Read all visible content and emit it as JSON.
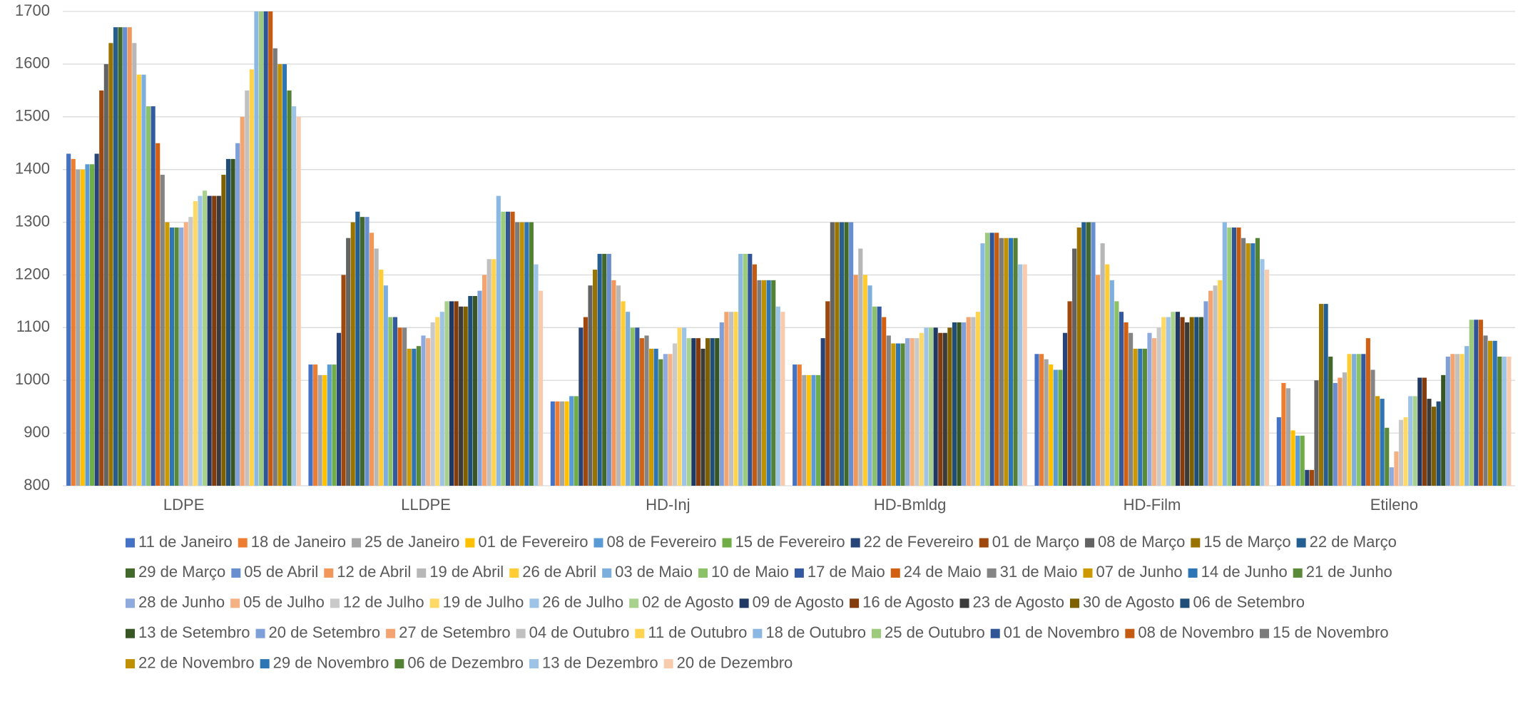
{
  "chart_data": {
    "type": "bar",
    "categories": [
      "LDPE",
      "LLDPE",
      "HD-Inj",
      "HD-Bmldg",
      "HD-Film",
      "Etileno"
    ],
    "ylim": [
      800,
      1700
    ],
    "yticks": [
      800,
      900,
      1000,
      1100,
      1200,
      1300,
      1400,
      1500,
      1600,
      1700
    ],
    "grid": true,
    "series": [
      {
        "name": "11 de Janeiro",
        "color": "#4472c4",
        "values": [
          1430,
          1030,
          960,
          1030,
          1050,
          930
        ]
      },
      {
        "name": "18 de Janeiro",
        "color": "#ed7d31",
        "values": [
          1420,
          1030,
          960,
          1030,
          1050,
          995
        ]
      },
      {
        "name": "25 de Janeiro",
        "color": "#a5a5a5",
        "values": [
          1400,
          1010,
          960,
          1010,
          1040,
          985
        ]
      },
      {
        "name": "01 de Fevereiro",
        "color": "#ffc000",
        "values": [
          1400,
          1010,
          960,
          1010,
          1030,
          905
        ]
      },
      {
        "name": "08 de Fevereiro",
        "color": "#5b9bd5",
        "values": [
          1410,
          1030,
          970,
          1010,
          1020,
          895
        ]
      },
      {
        "name": "15 de Fevereiro",
        "color": "#70ad47",
        "values": [
          1410,
          1030,
          970,
          1010,
          1020,
          895
        ]
      },
      {
        "name": "22 de Fevereiro",
        "color": "#264478",
        "values": [
          1430,
          1090,
          1100,
          1080,
          1090,
          830
        ]
      },
      {
        "name": "01 de Março",
        "color": "#9e480e",
        "values": [
          1550,
          1200,
          1120,
          1150,
          1150,
          830
        ]
      },
      {
        "name": "08 de Março",
        "color": "#636363",
        "values": [
          1600,
          1270,
          1180,
          1300,
          1250,
          1000
        ]
      },
      {
        "name": "15 de Março",
        "color": "#997300",
        "values": [
          1640,
          1300,
          1210,
          1300,
          1290,
          1145
        ]
      },
      {
        "name": "22 de Março",
        "color": "#255e91",
        "values": [
          1670,
          1320,
          1240,
          1300,
          1300,
          1145
        ]
      },
      {
        "name": "29 de Março",
        "color": "#43682b",
        "values": [
          1670,
          1310,
          1240,
          1300,
          1300,
          1045
        ]
      },
      {
        "name": "05 de Abril",
        "color": "#698ed0",
        "values": [
          1670,
          1310,
          1240,
          1300,
          1300,
          995
        ]
      },
      {
        "name": "12 de Abril",
        "color": "#f1975a",
        "values": [
          1670,
          1280,
          1190,
          1200,
          1200,
          1005
        ]
      },
      {
        "name": "19 de Abril",
        "color": "#b7b7b7",
        "values": [
          1640,
          1250,
          1180,
          1250,
          1260,
          1015
        ]
      },
      {
        "name": "26 de Abril",
        "color": "#ffcd33",
        "values": [
          1580,
          1210,
          1150,
          1200,
          1220,
          1050
        ]
      },
      {
        "name": "03 de Maio",
        "color": "#7cafdd",
        "values": [
          1580,
          1180,
          1130,
          1180,
          1190,
          1050
        ]
      },
      {
        "name": "10 de Maio",
        "color": "#8cc168",
        "values": [
          1520,
          1120,
          1100,
          1140,
          1150,
          1050
        ]
      },
      {
        "name": "17 de Maio",
        "color": "#335aa1",
        "values": [
          1520,
          1120,
          1100,
          1140,
          1130,
          1050
        ]
      },
      {
        "name": "24 de Maio",
        "color": "#d26012",
        "values": [
          1450,
          1100,
          1080,
          1120,
          1110,
          1080
        ]
      },
      {
        "name": "31 de Maio",
        "color": "#848484",
        "values": [
          1390,
          1100,
          1085,
          1085,
          1090,
          1020
        ]
      },
      {
        "name": "07 de Junho",
        "color": "#cc9a00",
        "values": [
          1300,
          1060,
          1060,
          1070,
          1060,
          970
        ]
      },
      {
        "name": "14 de Junho",
        "color": "#2e75b6",
        "values": [
          1290,
          1060,
          1060,
          1070,
          1060,
          965
        ]
      },
      {
        "name": "21 de Junho",
        "color": "#5a8a39",
        "values": [
          1290,
          1065,
          1040,
          1070,
          1060,
          910
        ]
      },
      {
        "name": "28 de Junho",
        "color": "#8faadc",
        "values": [
          1290,
          1085,
          1050,
          1080,
          1090,
          835
        ]
      },
      {
        "name": "05 de Julho",
        "color": "#f4b183",
        "values": [
          1300,
          1080,
          1050,
          1080,
          1080,
          865
        ]
      },
      {
        "name": "12 de Julho",
        "color": "#c9c9c9",
        "values": [
          1310,
          1110,
          1070,
          1080,
          1100,
          925
        ]
      },
      {
        "name": "19 de Julho",
        "color": "#ffd966",
        "values": [
          1340,
          1120,
          1100,
          1090,
          1120,
          930
        ]
      },
      {
        "name": "26 de Julho",
        "color": "#9dc3e6",
        "values": [
          1350,
          1130,
          1100,
          1100,
          1120,
          970
        ]
      },
      {
        "name": "02 de Agosto",
        "color": "#a9d18e",
        "values": [
          1360,
          1150,
          1080,
          1100,
          1130,
          970
        ]
      },
      {
        "name": "09 de Agosto",
        "color": "#203864",
        "values": [
          1350,
          1150,
          1080,
          1100,
          1130,
          1005
        ]
      },
      {
        "name": "16 de Agosto",
        "color": "#843c0c",
        "values": [
          1350,
          1150,
          1080,
          1090,
          1120,
          1005
        ]
      },
      {
        "name": "23 de Agosto",
        "color": "#3b3b3b",
        "values": [
          1350,
          1140,
          1060,
          1090,
          1110,
          965
        ]
      },
      {
        "name": "30 de Agosto",
        "color": "#7f6000",
        "values": [
          1390,
          1140,
          1080,
          1100,
          1120,
          950
        ]
      },
      {
        "name": "06 de Setembro",
        "color": "#1f4e79",
        "values": [
          1420,
          1160,
          1080,
          1110,
          1120,
          960
        ]
      },
      {
        "name": "13 de Setembro",
        "color": "#375623",
        "values": [
          1420,
          1160,
          1080,
          1110,
          1120,
          1010
        ]
      },
      {
        "name": "20 de Setembro",
        "color": "#7f9fd9",
        "values": [
          1450,
          1170,
          1110,
          1110,
          1150,
          1045
        ]
      },
      {
        "name": "27 de Setembro",
        "color": "#f4a470",
        "values": [
          1500,
          1200,
          1130,
          1120,
          1170,
          1050
        ]
      },
      {
        "name": "04 de Outubro",
        "color": "#c0c0c0",
        "values": [
          1550,
          1230,
          1130,
          1120,
          1180,
          1050
        ]
      },
      {
        "name": "11 de Outubro",
        "color": "#ffd34d",
        "values": [
          1590,
          1230,
          1130,
          1130,
          1190,
          1050
        ]
      },
      {
        "name": "18 de Outubro",
        "color": "#8ab8e2",
        "values": [
          1700,
          1350,
          1240,
          1260,
          1300,
          1065
        ]
      },
      {
        "name": "25 de Outubro",
        "color": "#9ccb7b",
        "values": [
          1700,
          1320,
          1240,
          1280,
          1290,
          1115
        ]
      },
      {
        "name": "01 de Novembro",
        "color": "#2f5597",
        "values": [
          1700,
          1320,
          1240,
          1280,
          1290,
          1115
        ]
      },
      {
        "name": "08 de Novembro",
        "color": "#c55a11",
        "values": [
          1700,
          1320,
          1220,
          1280,
          1290,
          1115
        ]
      },
      {
        "name": "15 de Novembro",
        "color": "#7b7b7b",
        "values": [
          1630,
          1300,
          1190,
          1270,
          1270,
          1085
        ]
      },
      {
        "name": "22 de Novembro",
        "color": "#bf9000",
        "values": [
          1600,
          1300,
          1190,
          1270,
          1260,
          1075
        ]
      },
      {
        "name": "29 de Novembro",
        "color": "#2e75b6",
        "values": [
          1600,
          1300,
          1190,
          1270,
          1260,
          1075
        ]
      },
      {
        "name": "06 de Dezembro",
        "color": "#548235",
        "values": [
          1550,
          1300,
          1190,
          1270,
          1270,
          1045
        ]
      },
      {
        "name": "13 de Dezembro",
        "color": "#9dc3e6",
        "values": [
          1520,
          1220,
          1140,
          1220,
          1230,
          1045
        ]
      },
      {
        "name": "20 de Dezembro",
        "color": "#f8cbad",
        "values": [
          1500,
          1170,
          1130,
          1220,
          1210,
          1045
        ]
      }
    ]
  }
}
